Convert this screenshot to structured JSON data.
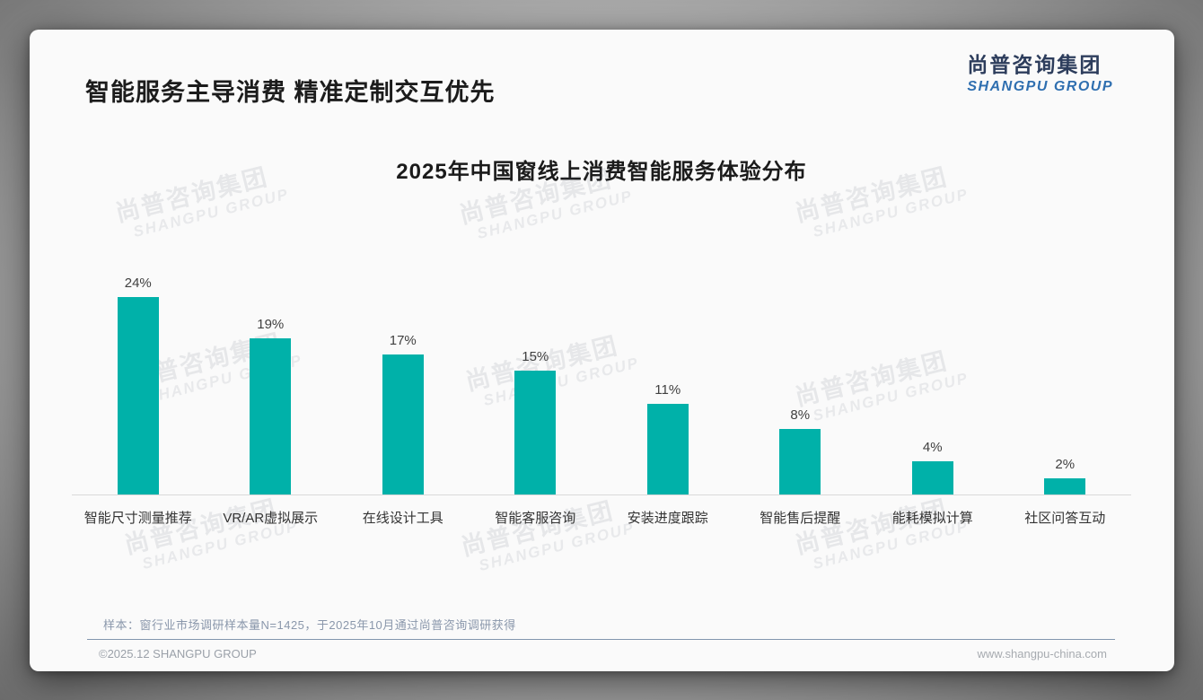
{
  "page": {
    "title": "智能服务主导消费 精准定制交互优先",
    "logo": {
      "cn": "尚普咨询集团",
      "en": "SHANGPU GROUP"
    },
    "watermark": {
      "cn": "尚普咨询集团",
      "en": "SHANGPU GROUP"
    },
    "note": "样本：窗行业市场调研样本量N=1425，于2025年10月通过尚普咨询调研获得",
    "footer": {
      "left": "©2025.12 SHANGPU GROUP",
      "right": "www.shangpu-china.com"
    }
  },
  "colors": {
    "bar": "#00b1a9",
    "logo_navy": "#2d3d5c",
    "logo_blue": "#2f6fb0",
    "note_text": "#8a97ab"
  },
  "chart_data": {
    "type": "bar",
    "title": "2025年中国窗线上消费智能服务体验分布",
    "categories": [
      "智能尺寸测量推荐",
      "VR/AR虚拟展示",
      "在线设计工具",
      "智能客服咨询",
      "安装进度跟踪",
      "智能售后提醒",
      "能耗模拟计算",
      "社区问答互动"
    ],
    "values": [
      24,
      19,
      17,
      15,
      11,
      8,
      4,
      2
    ],
    "data_labels": [
      "24%",
      "19%",
      "17%",
      "15%",
      "11%",
      "8%",
      "4%",
      "2%"
    ],
    "unit": "%",
    "ylim": [
      0,
      26
    ],
    "grid": false,
    "legend": "none",
    "bar_color": "#00b1a9"
  }
}
